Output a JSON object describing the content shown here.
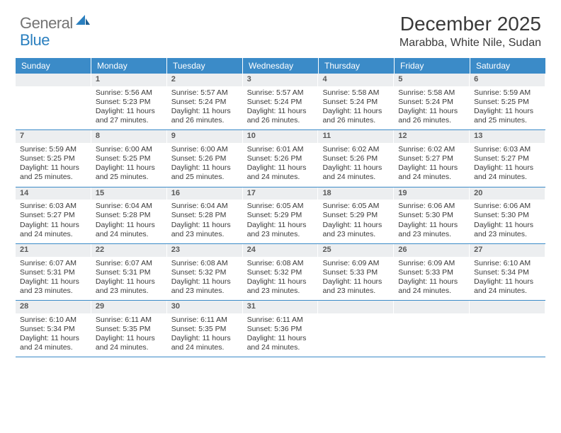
{
  "logo": {
    "general": "General",
    "blue": "Blue"
  },
  "title": "December 2025",
  "location": "Marabba, White Nile, Sudan",
  "colors": {
    "header_bg": "#3b8bc8",
    "header_text": "#ffffff",
    "daynum_bg": "#eceef0",
    "daynum_text": "#595959",
    "body_text": "#3a3a3a",
    "rule": "#3b8bc8",
    "logo_gray": "#737373",
    "logo_blue": "#2a7fbf"
  },
  "typography": {
    "title_fontsize": 28,
    "location_fontsize": 16,
    "header_fontsize": 12,
    "cell_fontsize": 10.5
  },
  "day_names": [
    "Sunday",
    "Monday",
    "Tuesday",
    "Wednesday",
    "Thursday",
    "Friday",
    "Saturday"
  ],
  "weeks": [
    [
      {
        "day": "",
        "sunrise": "",
        "sunset": "",
        "daylight": ""
      },
      {
        "day": "1",
        "sunrise": "Sunrise: 5:56 AM",
        "sunset": "Sunset: 5:23 PM",
        "daylight": "Daylight: 11 hours and 27 minutes."
      },
      {
        "day": "2",
        "sunrise": "Sunrise: 5:57 AM",
        "sunset": "Sunset: 5:24 PM",
        "daylight": "Daylight: 11 hours and 26 minutes."
      },
      {
        "day": "3",
        "sunrise": "Sunrise: 5:57 AM",
        "sunset": "Sunset: 5:24 PM",
        "daylight": "Daylight: 11 hours and 26 minutes."
      },
      {
        "day": "4",
        "sunrise": "Sunrise: 5:58 AM",
        "sunset": "Sunset: 5:24 PM",
        "daylight": "Daylight: 11 hours and 26 minutes."
      },
      {
        "day": "5",
        "sunrise": "Sunrise: 5:58 AM",
        "sunset": "Sunset: 5:24 PM",
        "daylight": "Daylight: 11 hours and 26 minutes."
      },
      {
        "day": "6",
        "sunrise": "Sunrise: 5:59 AM",
        "sunset": "Sunset: 5:25 PM",
        "daylight": "Daylight: 11 hours and 25 minutes."
      }
    ],
    [
      {
        "day": "7",
        "sunrise": "Sunrise: 5:59 AM",
        "sunset": "Sunset: 5:25 PM",
        "daylight": "Daylight: 11 hours and 25 minutes."
      },
      {
        "day": "8",
        "sunrise": "Sunrise: 6:00 AM",
        "sunset": "Sunset: 5:25 PM",
        "daylight": "Daylight: 11 hours and 25 minutes."
      },
      {
        "day": "9",
        "sunrise": "Sunrise: 6:00 AM",
        "sunset": "Sunset: 5:26 PM",
        "daylight": "Daylight: 11 hours and 25 minutes."
      },
      {
        "day": "10",
        "sunrise": "Sunrise: 6:01 AM",
        "sunset": "Sunset: 5:26 PM",
        "daylight": "Daylight: 11 hours and 24 minutes."
      },
      {
        "day": "11",
        "sunrise": "Sunrise: 6:02 AM",
        "sunset": "Sunset: 5:26 PM",
        "daylight": "Daylight: 11 hours and 24 minutes."
      },
      {
        "day": "12",
        "sunrise": "Sunrise: 6:02 AM",
        "sunset": "Sunset: 5:27 PM",
        "daylight": "Daylight: 11 hours and 24 minutes."
      },
      {
        "day": "13",
        "sunrise": "Sunrise: 6:03 AM",
        "sunset": "Sunset: 5:27 PM",
        "daylight": "Daylight: 11 hours and 24 minutes."
      }
    ],
    [
      {
        "day": "14",
        "sunrise": "Sunrise: 6:03 AM",
        "sunset": "Sunset: 5:27 PM",
        "daylight": "Daylight: 11 hours and 24 minutes."
      },
      {
        "day": "15",
        "sunrise": "Sunrise: 6:04 AM",
        "sunset": "Sunset: 5:28 PM",
        "daylight": "Daylight: 11 hours and 24 minutes."
      },
      {
        "day": "16",
        "sunrise": "Sunrise: 6:04 AM",
        "sunset": "Sunset: 5:28 PM",
        "daylight": "Daylight: 11 hours and 23 minutes."
      },
      {
        "day": "17",
        "sunrise": "Sunrise: 6:05 AM",
        "sunset": "Sunset: 5:29 PM",
        "daylight": "Daylight: 11 hours and 23 minutes."
      },
      {
        "day": "18",
        "sunrise": "Sunrise: 6:05 AM",
        "sunset": "Sunset: 5:29 PM",
        "daylight": "Daylight: 11 hours and 23 minutes."
      },
      {
        "day": "19",
        "sunrise": "Sunrise: 6:06 AM",
        "sunset": "Sunset: 5:30 PM",
        "daylight": "Daylight: 11 hours and 23 minutes."
      },
      {
        "day": "20",
        "sunrise": "Sunrise: 6:06 AM",
        "sunset": "Sunset: 5:30 PM",
        "daylight": "Daylight: 11 hours and 23 minutes."
      }
    ],
    [
      {
        "day": "21",
        "sunrise": "Sunrise: 6:07 AM",
        "sunset": "Sunset: 5:31 PM",
        "daylight": "Daylight: 11 hours and 23 minutes."
      },
      {
        "day": "22",
        "sunrise": "Sunrise: 6:07 AM",
        "sunset": "Sunset: 5:31 PM",
        "daylight": "Daylight: 11 hours and 23 minutes."
      },
      {
        "day": "23",
        "sunrise": "Sunrise: 6:08 AM",
        "sunset": "Sunset: 5:32 PM",
        "daylight": "Daylight: 11 hours and 23 minutes."
      },
      {
        "day": "24",
        "sunrise": "Sunrise: 6:08 AM",
        "sunset": "Sunset: 5:32 PM",
        "daylight": "Daylight: 11 hours and 23 minutes."
      },
      {
        "day": "25",
        "sunrise": "Sunrise: 6:09 AM",
        "sunset": "Sunset: 5:33 PM",
        "daylight": "Daylight: 11 hours and 23 minutes."
      },
      {
        "day": "26",
        "sunrise": "Sunrise: 6:09 AM",
        "sunset": "Sunset: 5:33 PM",
        "daylight": "Daylight: 11 hours and 24 minutes."
      },
      {
        "day": "27",
        "sunrise": "Sunrise: 6:10 AM",
        "sunset": "Sunset: 5:34 PM",
        "daylight": "Daylight: 11 hours and 24 minutes."
      }
    ],
    [
      {
        "day": "28",
        "sunrise": "Sunrise: 6:10 AM",
        "sunset": "Sunset: 5:34 PM",
        "daylight": "Daylight: 11 hours and 24 minutes."
      },
      {
        "day": "29",
        "sunrise": "Sunrise: 6:11 AM",
        "sunset": "Sunset: 5:35 PM",
        "daylight": "Daylight: 11 hours and 24 minutes."
      },
      {
        "day": "30",
        "sunrise": "Sunrise: 6:11 AM",
        "sunset": "Sunset: 5:35 PM",
        "daylight": "Daylight: 11 hours and 24 minutes."
      },
      {
        "day": "31",
        "sunrise": "Sunrise: 6:11 AM",
        "sunset": "Sunset: 5:36 PM",
        "daylight": "Daylight: 11 hours and 24 minutes."
      },
      {
        "day": "",
        "sunrise": "",
        "sunset": "",
        "daylight": ""
      },
      {
        "day": "",
        "sunrise": "",
        "sunset": "",
        "daylight": ""
      },
      {
        "day": "",
        "sunrise": "",
        "sunset": "",
        "daylight": ""
      }
    ]
  ]
}
